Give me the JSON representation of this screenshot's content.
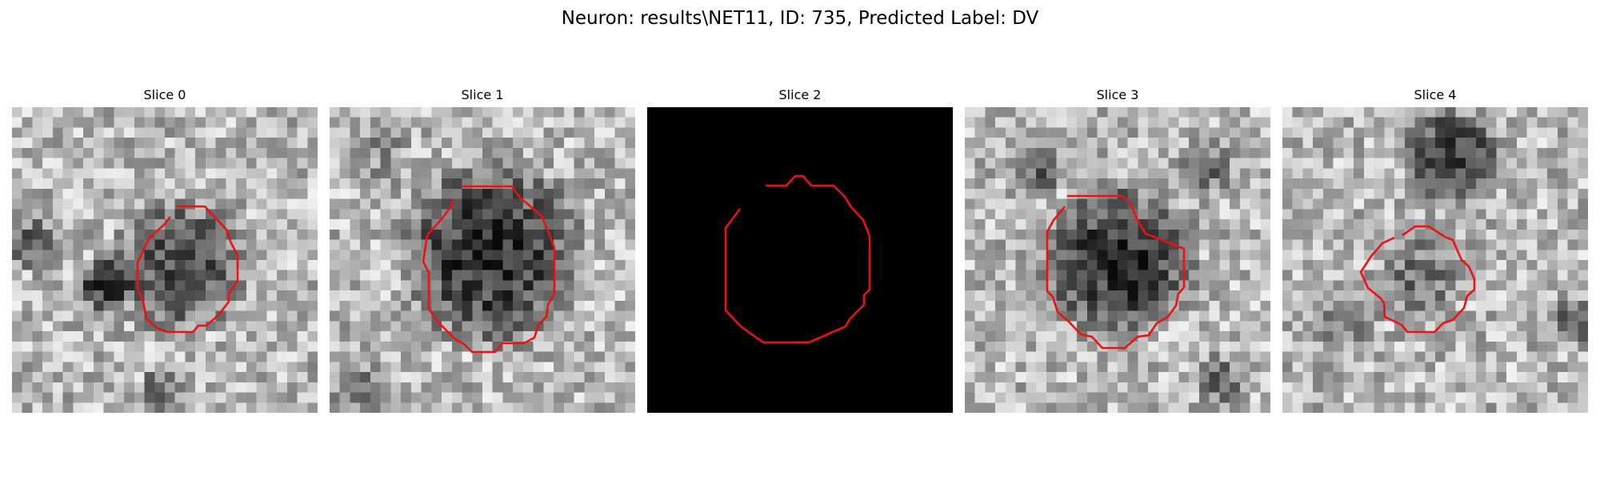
{
  "figure": {
    "title": "Neuron: results\\NET11, ID: 735, Predicted Label: DV"
  },
  "colors": {
    "contour": "#ee1111",
    "background": "#ffffff"
  },
  "slices": [
    {
      "title": "Slice 0",
      "kind": "cell-body-dark-blob",
      "brightness": "gray"
    },
    {
      "title": "Slice 1",
      "kind": "cell-body-dark-blob",
      "brightness": "gray"
    },
    {
      "title": "Slice 2",
      "kind": "blank",
      "brightness": "black"
    },
    {
      "title": "Slice 3",
      "kind": "cell-body-dark-blob",
      "brightness": "gray"
    },
    {
      "title": "Slice 4",
      "kind": "cell-body-dark-blob",
      "brightness": "gray"
    }
  ]
}
